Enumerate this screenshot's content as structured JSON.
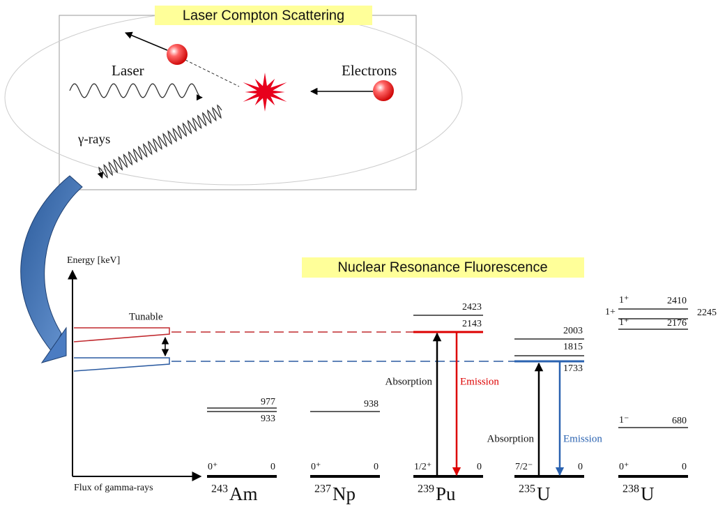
{
  "lcs": {
    "title": "Laser Compton Scattering",
    "laser": "Laser",
    "electrons": "Electrons",
    "gamma": "γ-rays"
  },
  "nrf": {
    "title": "Nuclear Resonance Fluorescence",
    "y_axis": "Energy [keV]",
    "x_axis": "Flux of gamma-rays",
    "tunable": "Tunable",
    "nuclei": [
      {
        "mass": "243",
        "symbol": "Am",
        "ground_spin": "0⁺",
        "ground_energy": 0,
        "levels": [
          {
            "energy": 977
          },
          {
            "energy": 933
          }
        ]
      },
      {
        "mass": "237",
        "symbol": "Np",
        "ground_spin": "0⁺",
        "ground_energy": 0,
        "levels": [
          {
            "energy": 938
          }
        ]
      },
      {
        "mass": "239",
        "symbol": "Pu",
        "ground_spin": "1/2⁺",
        "ground_energy": 0,
        "levels": [
          {
            "energy": 2423
          },
          {
            "energy": 2143
          }
        ],
        "absorption": "Absorption",
        "emission": "Emission"
      },
      {
        "mass": "235",
        "symbol": "U",
        "ground_spin": "7/2⁻",
        "ground_energy": 0,
        "levels": [
          {
            "energy": 2003
          },
          {
            "energy": 1815
          },
          {
            "energy": 1733
          }
        ],
        "absorption": "Absorption",
        "emission": "Emission"
      },
      {
        "mass": "238",
        "symbol": "U",
        "ground_spin": "0⁺",
        "ground_energy": 0,
        "levels": [
          {
            "energy": 2410,
            "spin": "1⁺"
          },
          {
            "energy": 2245,
            "spin": "1+"
          },
          {
            "energy": 2176,
            "spin": "1⁺"
          },
          {
            "energy": 680,
            "spin": "1⁻"
          }
        ]
      }
    ]
  }
}
